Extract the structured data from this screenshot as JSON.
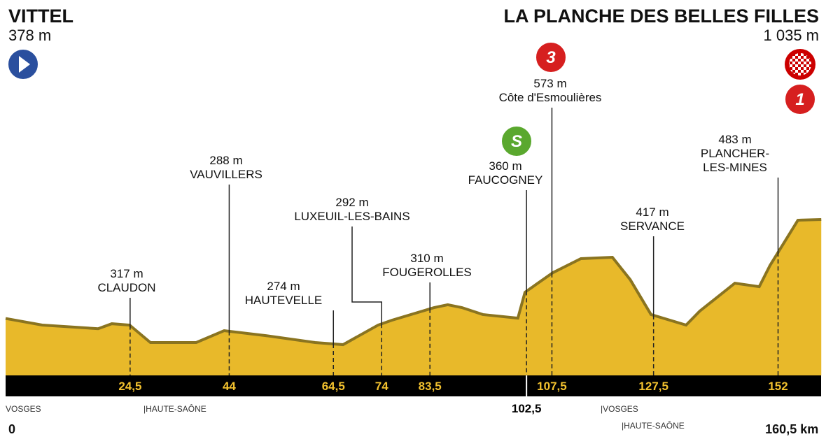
{
  "start": {
    "name": "VITTEL",
    "altitude": "378 m"
  },
  "finish": {
    "name": "LA PLANCHE DES BELLES FILLES",
    "altitude": "1 035 m",
    "badge": "1"
  },
  "waypoints": [
    {
      "name": "CLAUDON",
      "altitude": "317 m",
      "km": {
        "value": 24.5,
        "label": "24,5"
      }
    },
    {
      "name": "VAUVILLERS",
      "altitude": "288 m",
      "km": 44
    },
    {
      "name": "HAUTEVELLE",
      "altitude": "274 m",
      "km": {
        "value": 64.5,
        "label": "64,5"
      }
    },
    {
      "name": "LUXEUIL-LES-BAINS",
      "altitude": "292 m",
      "km": 74
    },
    {
      "name": "FOUGEROLLES",
      "altitude": "310 m",
      "km": {
        "value": 83.5,
        "label": "83,5"
      }
    },
    {
      "name": "FAUCOGNEY",
      "altitude": "360 m",
      "km": {
        "value": 102.5,
        "label": "102,5"
      },
      "badge": "S"
    },
    {
      "name": "Côte d'Esmoulières",
      "altitude": "573 m",
      "km": {
        "value": 107.5,
        "label": "107,5"
      },
      "badge": "3"
    },
    {
      "name": "SERVANCE",
      "altitude": "417 m",
      "km": {
        "value": 127.5,
        "label": "127,5"
      }
    },
    {
      "name": "PLANCHER-\nLES-MINES",
      "altitude": "483 m",
      "km": 152
    }
  ],
  "departments": [
    "VOSGES",
    "|HAUTE-SAÔNE",
    "|VOSGES",
    "|HAUTE-SAÔNE"
  ],
  "distance": {
    "start": 0,
    "total": {
      "value": 160.5,
      "label": "160,5 km"
    }
  },
  "profile": {
    "km": [
      0,
      7.2,
      18.2,
      20.9,
      24.4,
      28.5,
      37.5,
      43,
      51.2,
      60.9,
      66.4,
      73.3,
      76,
      84.3,
      87,
      89.8,
      93.9,
      100.8,
      102.2,
      107.7,
      113.2,
      119.4,
      122.9,
      127,
      133.9,
      136.6,
      143.5,
      148.3,
      150.4,
      155.9,
      160.5
    ],
    "altitude": [
      378,
      334,
      310,
      343,
      334,
      218,
      218,
      297,
      264,
      218,
      204,
      334,
      366,
      450,
      469,
      450,
      404,
      380,
      552,
      682,
      775,
      784,
      636,
      404,
      334,
      427,
      612,
      589,
      729,
      1030,
      1035
    ],
    "color": "#e8b92a"
  }
}
